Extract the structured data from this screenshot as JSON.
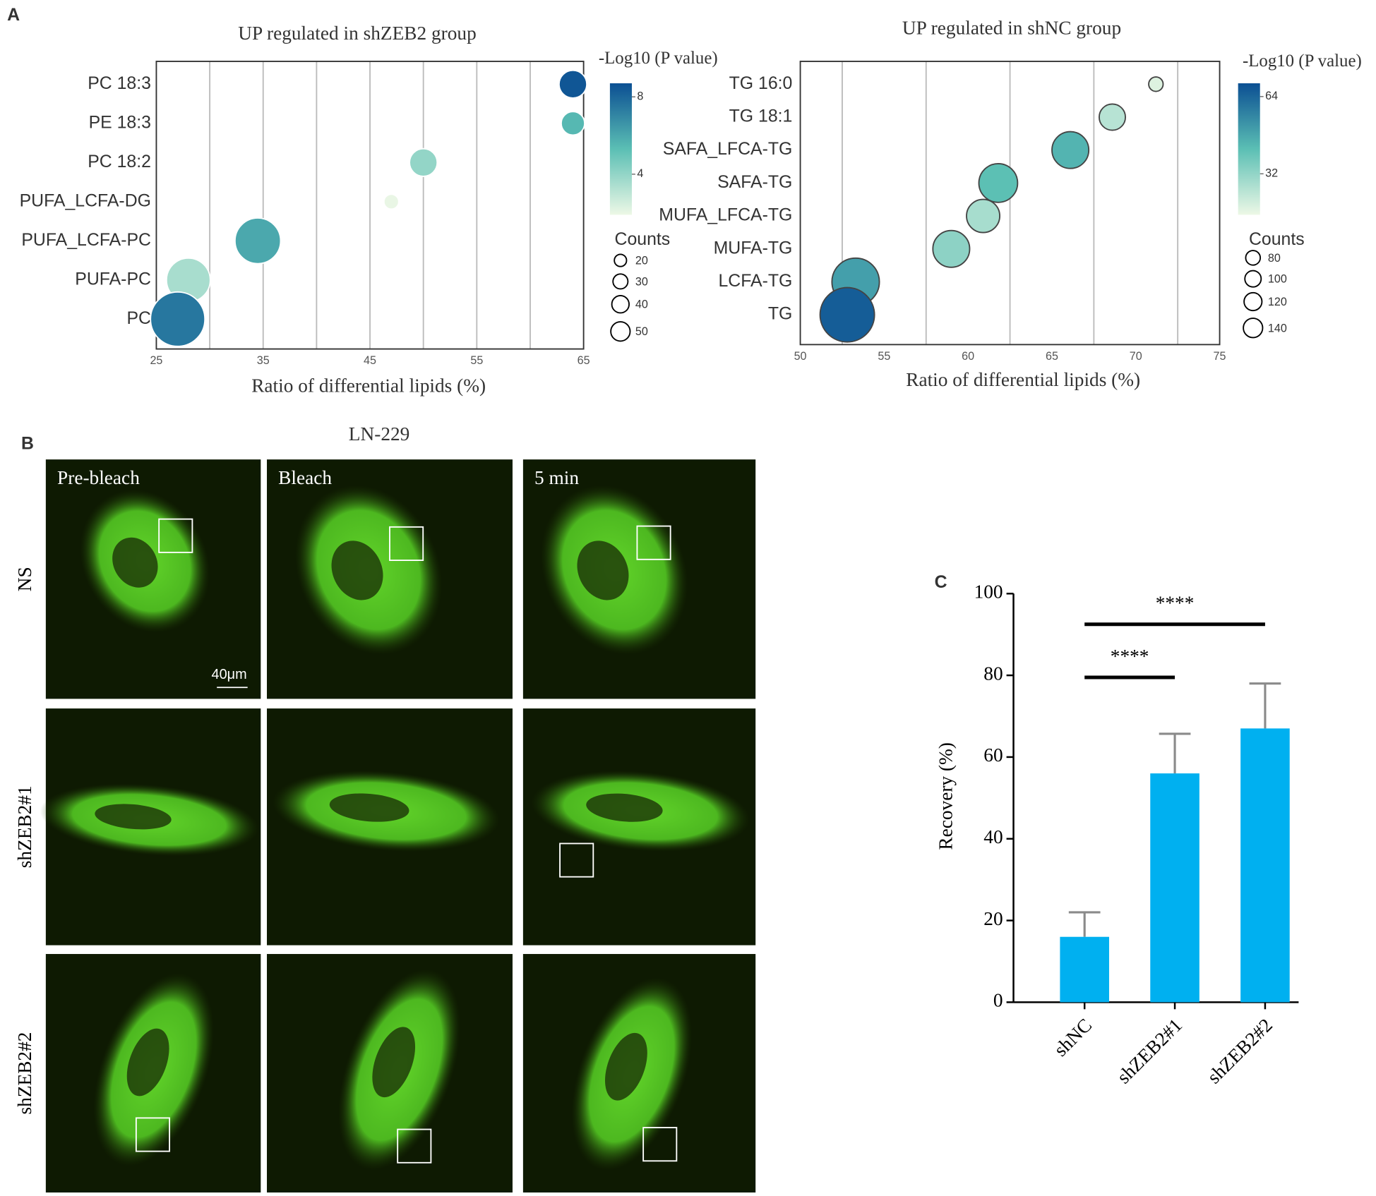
{
  "labels": {
    "a": "A",
    "b": "B",
    "c": "C"
  },
  "panel_b": {
    "title": "LN-229",
    "columns": [
      "Pre-bleach",
      "Bleach",
      "5 min"
    ],
    "rows": [
      "NS",
      "shZEB2#1",
      "shZEB2#2"
    ],
    "scale_bar": "40μm"
  },
  "chart_data": [
    {
      "type": "bubble",
      "title": "UP regulated in shZEB2 group",
      "xlabel": "Ratio of differential lipids (%)",
      "categories": [
        "PC 18:3",
        "PE 18:3",
        "PC 18:2",
        "PUFA_LCFA-DG",
        "PUFA_LCFA-PC",
        "PUFA-PC",
        "PC"
      ],
      "x": [
        64,
        64,
        50,
        47,
        34.5,
        28,
        27
      ],
      "sizes": [
        14,
        10,
        14,
        4,
        38,
        35,
        54
      ],
      "pvalues": [
        8.5,
        5.5,
        4,
        2,
        6,
        3.5,
        7.5
      ],
      "xlim": [
        25,
        65
      ],
      "xticks": [
        25,
        35,
        45,
        55,
        65
      ],
      "xgrid": [
        30,
        35,
        40,
        45,
        50,
        55,
        60
      ],
      "color_title": "-Log10 (P value)",
      "clim": [
        1.9,
        8.7
      ],
      "cticks": [
        4,
        8
      ],
      "size_title": "Counts",
      "size_ticks": [
        20,
        30,
        40,
        50
      ],
      "edgecolor": "#ffffff"
    },
    {
      "type": "bubble",
      "title": "UP regulated in shNC group",
      "xlabel": "Ratio of differential lipids (%)",
      "categories": [
        "TG 16:0",
        "TG 18:1",
        "SAFA_LFCA-TG",
        "SAFA-TG",
        "MUFA_LFCA-TG",
        "MUFA-TG",
        "LCFA-TG",
        "TG"
      ],
      "x": [
        71.2,
        68.6,
        66.1,
        61.8,
        60.9,
        59,
        53.3,
        52.8
      ],
      "sizes": [
        10,
        33,
        65,
        72,
        53,
        65,
        108,
        142
      ],
      "pvalues": [
        18,
        25,
        45,
        42,
        28,
        33,
        50,
        66
      ],
      "xlim": [
        50,
        75
      ],
      "xticks": [
        50,
        55,
        60,
        65,
        70,
        75
      ],
      "xgrid": [
        52.5,
        57.5,
        62.5,
        67.5,
        72.5
      ],
      "color_title": "-Log10 (P value)",
      "clim": [
        15,
        69.5
      ],
      "cticks": [
        32,
        64
      ],
      "size_title": "Counts",
      "size_ticks": [
        80,
        100,
        120,
        140
      ],
      "edgecolor": "#444444"
    },
    {
      "type": "bar",
      "ylabel": "Recovery (%)",
      "categories": [
        "shNC",
        "shZEB2#1",
        "shZEB2#2"
      ],
      "values": [
        16,
        56,
        67
      ],
      "errors": [
        6,
        9.7,
        11
      ],
      "color": "#00b0f0",
      "ylim": [
        0,
        100
      ],
      "yticks": [
        0,
        20,
        40,
        60,
        80,
        100
      ],
      "annotations": [
        {
          "label": "****",
          "from": 0,
          "to": 2,
          "y": 92.5
        },
        {
          "label": "****",
          "from": 0,
          "to": 1,
          "y": 79.5
        }
      ]
    }
  ]
}
